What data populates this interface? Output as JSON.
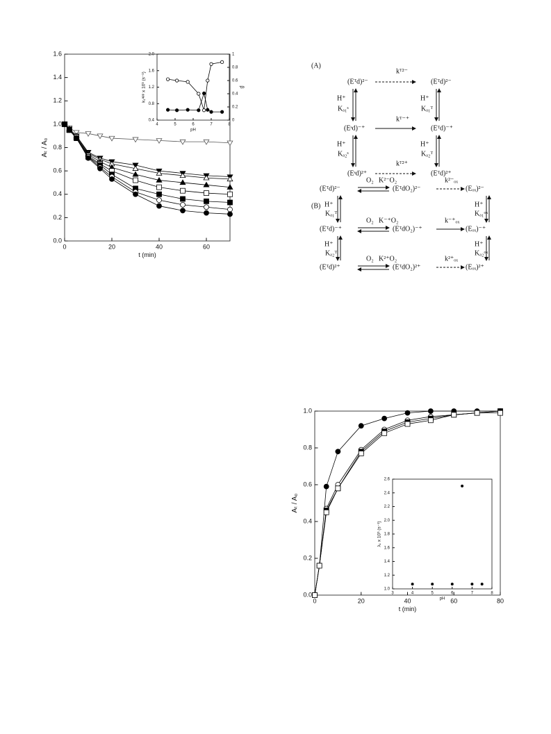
{
  "chart_data": [
    {
      "type": "line",
      "xlabel": "t (min)",
      "ylabel": "Aₜ / A₀",
      "x": [
        0,
        2,
        5,
        10,
        15,
        20,
        30,
        40,
        50,
        60,
        70
      ],
      "xlim": [
        0,
        70
      ],
      "xticks": [
        0,
        20,
        40,
        60
      ],
      "ylim": [
        0,
        1.6
      ],
      "yticks": [
        {
          "value": 0,
          "label": "0.0"
        },
        0.2,
        0.4,
        0.6,
        0.8,
        {
          "value": 1,
          "label": "1.0"
        },
        1.2,
        1.4,
        1.6
      ],
      "series": [
        {
          "marker": "triangle-down-open",
          "color": "#555",
          "values": [
            1.0,
            0.97,
            0.93,
            0.92,
            0.9,
            0.88,
            0.87,
            0.86,
            0.85,
            0.85,
            0.84
          ]
        },
        {
          "marker": "triangle-down-filled",
          "color": "#000",
          "values": [
            1.0,
            0.96,
            0.9,
            0.76,
            0.71,
            0.68,
            0.65,
            0.6,
            0.58,
            0.56,
            0.55
          ]
        },
        {
          "marker": "triangle-up-open",
          "color": "#000",
          "values": [
            1.0,
            0.96,
            0.9,
            0.75,
            0.7,
            0.66,
            0.62,
            0.58,
            0.56,
            0.54,
            0.53
          ]
        },
        {
          "marker": "triangle-up-filled",
          "color": "#000",
          "values": [
            1.0,
            0.95,
            0.89,
            0.74,
            0.68,
            0.63,
            0.57,
            0.52,
            0.5,
            0.48,
            0.46
          ]
        },
        {
          "marker": "square-open",
          "color": "#000",
          "values": [
            1.0,
            0.95,
            0.89,
            0.73,
            0.66,
            0.6,
            0.52,
            0.46,
            0.43,
            0.41,
            0.4
          ]
        },
        {
          "marker": "square-filled",
          "color": "#000",
          "values": [
            1.0,
            0.95,
            0.88,
            0.72,
            0.65,
            0.57,
            0.45,
            0.4,
            0.36,
            0.34,
            0.33
          ]
        },
        {
          "marker": "circle-open",
          "color": "#000",
          "values": [
            1.0,
            0.95,
            0.88,
            0.72,
            0.63,
            0.55,
            0.42,
            0.35,
            0.31,
            0.29,
            0.27
          ]
        },
        {
          "marker": "circle-filled",
          "color": "#000",
          "values": [
            1.0,
            0.95,
            0.88,
            0.71,
            0.62,
            0.53,
            0.4,
            0.3,
            0.26,
            0.24,
            0.23
          ]
        }
      ]
    },
    {
      "type": "line",
      "xlabel": "pH",
      "ylabel": "k₁ᵃᵖᵖ x 10³ (s⁻¹)",
      "y2label": "β",
      "x": [
        4.6,
        5.1,
        5.7,
        6.3,
        6.6,
        6.8,
        7.0,
        7.6
      ],
      "xlim": [
        4,
        8
      ],
      "xticks": [
        4,
        5,
        6,
        7,
        8
      ],
      "ylim": [
        0.4,
        2.0
      ],
      "yticks": [
        0.4,
        0.8,
        1.2,
        1.6,
        {
          "value": 2,
          "label": "2.0"
        }
      ],
      "y2lim": [
        0,
        1.0
      ],
      "y2ticks": [
        0,
        0.2,
        0.4,
        0.6,
        0.8,
        1
      ],
      "series": [
        {
          "marker": "circle-filled",
          "color": "#000",
          "values": [
            0.65,
            0.64,
            0.65,
            0.64,
            1.05,
            0.65,
            0.6,
            0.6
          ]
        },
        {
          "marker": "circle-open",
          "color": "#000",
          "axis": "y2",
          "values": [
            0.62,
            0.6,
            0.58,
            0.4,
            0.15,
            0.6,
            0.85,
            0.88
          ]
        }
      ]
    },
    {
      "type": "line",
      "xlabel": "t (min)",
      "ylabel": "Aₜ / A₀",
      "x": [
        0,
        2,
        5,
        10,
        20,
        30,
        40,
        50,
        60,
        70,
        80
      ],
      "xlim": [
        0,
        80
      ],
      "xticks": [
        0,
        20,
        40,
        60,
        80
      ],
      "ylim": [
        0,
        1.0
      ],
      "yticks": [
        {
          "value": 0,
          "label": "0.0"
        },
        0.2,
        0.4,
        0.6,
        0.8,
        {
          "value": 1,
          "label": "1.0"
        }
      ],
      "series": [
        {
          "marker": "circle-filled",
          "color": "#000",
          "values": [
            0,
            0.16,
            0.59,
            0.78,
            0.92,
            0.96,
            0.99,
            1.0,
            1.0,
            1.0,
            1.0
          ]
        },
        {
          "marker": "circle-open",
          "color": "#000",
          "values": [
            0,
            0.16,
            0.47,
            0.6,
            0.79,
            0.9,
            0.95,
            0.97,
            0.98,
            0.99,
            1.0
          ]
        },
        {
          "marker": "square-filled",
          "color": "#000",
          "values": [
            0,
            0.16,
            0.46,
            0.58,
            0.78,
            0.89,
            0.94,
            0.96,
            0.98,
            0.99,
            1.0
          ]
        },
        {
          "marker": "square-open",
          "color": "#000",
          "values": [
            0,
            0.16,
            0.45,
            0.58,
            0.77,
            0.88,
            0.93,
            0.95,
            0.98,
            0.99,
            0.99
          ]
        }
      ]
    },
    {
      "type": "scatter",
      "xlabel": "pH",
      "ylabel": "λ₁ x 10³ (s⁻¹)",
      "x": [
        4,
        5,
        6,
        6.5,
        7,
        7.5
      ],
      "xlim": [
        3,
        8
      ],
      "xticks": [
        3,
        4,
        5,
        6,
        7,
        8
      ],
      "ylim": [
        1.0,
        2.6
      ],
      "yticks": [
        {
          "value": 1,
          "label": "1.0"
        },
        1.2,
        1.4,
        1.6,
        1.8,
        {
          "value": 2,
          "label": "2.0"
        },
        2.2,
        2.4,
        2.6
      ],
      "series": [
        {
          "marker": "circle-filled",
          "color": "#000",
          "values": [
            1.07,
            1.07,
            1.07,
            2.5,
            1.07,
            1.07
          ]
        }
      ]
    }
  ],
  "scheme": {
    "texts": [
      "(A)",
      "(Eᵀd)²⁻",
      "(Eᵀd)²⁻",
      "(Eˢd)⁻⁺",
      "(Eᵀd)⁻⁺",
      "(Eˢd)²⁺",
      "(Eᵀd)²⁺",
      "kᵀ²⁻",
      "kᵀ⁻⁺",
      "kᵀ²⁺",
      "H⁺",
      "Kₐ₁ˢ",
      "H⁺",
      "Kₐ₁ᵀ",
      "H⁺",
      "Kₐ₂ˢ",
      "H⁺",
      "Kₐ₂ᵀ",
      "(B)",
      "(Eᵀd)²⁻",
      "(EᵀdO₂)²⁻",
      "(Eₒₓ)²⁻",
      "O₂",
      "K²⁻O₂",
      "k²⁻ₒₓ",
      "(Eᵀd)⁻⁺",
      "(EᵀdO₂)⁻⁺",
      "(Eₒₓ)⁻⁺",
      "O₂",
      "K⁻⁺O₂",
      "k⁻⁺ₒₓ",
      "(Eᵀd)²⁺",
      "(EᵀdO₂)²⁺",
      "(Eₒₓ)²⁺",
      "O₂",
      "K²⁺O₂",
      "k²⁺ₒₓ",
      "H⁺",
      "Kₐ₁ᵀ",
      "H⁺",
      "Kₐ₂ᵀ",
      "H⁺",
      "Kₐ₁ᵒˣ",
      "H⁺",
      "Kₐ₂ᵒˣ"
    ]
  }
}
